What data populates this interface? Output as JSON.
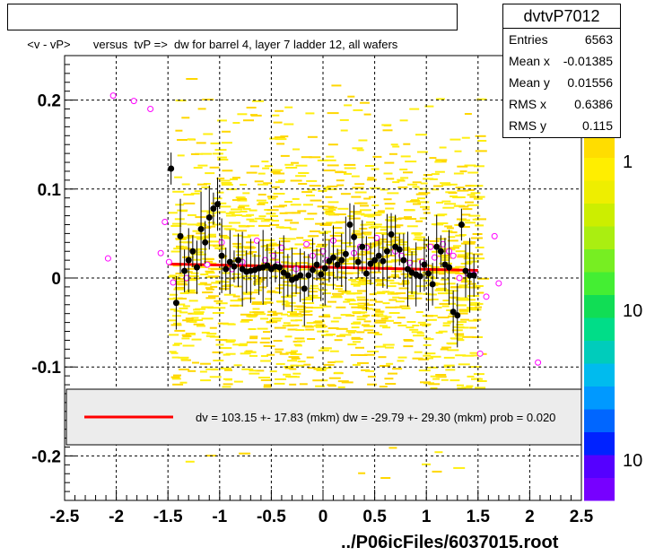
{
  "title": "<v - vP>       versus  tvP =>  dw for barrel 4, layer 7 ladder 12, all wafers",
  "stats": {
    "name": "dvtvP7012",
    "rows": [
      {
        "label": "Entries",
        "value": "6563"
      },
      {
        "label": "Mean x",
        "value": "-0.01385"
      },
      {
        "label": "Mean y",
        "value": "0.01556"
      },
      {
        "label": "RMS x",
        "value": "0.6386"
      },
      {
        "label": "RMS y",
        "value": "0.115"
      }
    ]
  },
  "footer": "../P06icFiles/6037015.root",
  "colors": {
    "fit": "#ff0000",
    "profile": "#000000",
    "open_marker": "#ff00ff"
  },
  "chart_data": {
    "type": "scatter",
    "title": "<v - vP>       versus  tvP =>  dw for barrel 4, layer 7 ladder 12, all wafers",
    "xlabel": "",
    "ylabel": "",
    "xlim": [
      -2.5,
      2.5
    ],
    "ylim": [
      -0.25,
      0.25
    ],
    "xticks": [
      "-2.5",
      "-2",
      "-1.5",
      "-1",
      "-0.5",
      "0",
      "0.5",
      "1",
      "1.5",
      "2",
      "2.5"
    ],
    "yticks": [
      "-0.2",
      "-0.1",
      "0",
      "0.1",
      "0.2"
    ],
    "grid": true,
    "colorbar_labels": [
      "1",
      "10",
      "10"
    ],
    "series": [
      {
        "marker": "filled-circle",
        "points": [
          [
            -1.47,
            0.123
          ],
          [
            -1.42,
            -0.028
          ],
          [
            -1.38,
            0.047
          ],
          [
            -1.34,
            0.008
          ],
          [
            -1.3,
            0.02
          ],
          [
            -1.26,
            0.03
          ],
          [
            -1.22,
            0.012
          ],
          [
            -1.18,
            0.055
          ],
          [
            -1.14,
            0.04
          ],
          [
            -1.1,
            0.068
          ],
          [
            -1.06,
            0.078
          ],
          [
            -1.02,
            0.083
          ],
          [
            -0.98,
            0.025
          ],
          [
            -0.94,
            0.01
          ],
          [
            -0.9,
            0.018
          ],
          [
            -0.86,
            0.013
          ],
          [
            -0.82,
            0.02
          ],
          [
            -0.78,
            0.01
          ],
          [
            -0.74,
            0.007
          ],
          [
            -0.7,
            0.008
          ],
          [
            -0.66,
            0.009
          ],
          [
            -0.62,
            0.011
          ],
          [
            -0.58,
            0.012
          ],
          [
            -0.54,
            0.014
          ],
          [
            -0.5,
            0.01
          ],
          [
            -0.46,
            0.013
          ],
          [
            -0.42,
            0.012
          ],
          [
            -0.38,
            0.006
          ],
          [
            -0.34,
            0.003
          ],
          [
            -0.3,
            -0.002
          ],
          [
            -0.26,
            0.0
          ],
          [
            -0.22,
            0.003
          ],
          [
            -0.18,
            -0.012
          ],
          [
            -0.14,
            0.003
          ],
          [
            -0.1,
            0.009
          ],
          [
            -0.06,
            0.015
          ],
          [
            -0.02,
            0.004
          ],
          [
            0.02,
            0.011
          ],
          [
            0.06,
            0.019
          ],
          [
            0.1,
            0.023
          ],
          [
            0.14,
            0.015
          ],
          [
            0.18,
            0.02
          ],
          [
            0.22,
            0.027
          ],
          [
            0.26,
            0.06
          ],
          [
            0.3,
            0.046
          ],
          [
            0.34,
            0.018
          ],
          [
            0.38,
            0.035
          ],
          [
            0.42,
            0.005
          ],
          [
            0.46,
            0.016
          ],
          [
            0.5,
            0.02
          ],
          [
            0.54,
            0.025
          ],
          [
            0.58,
            0.019
          ],
          [
            0.62,
            0.03
          ],
          [
            0.66,
            0.049
          ],
          [
            0.7,
            0.035
          ],
          [
            0.74,
            0.032
          ],
          [
            0.78,
            0.02
          ],
          [
            0.82,
            0.01
          ],
          [
            0.86,
            0.006
          ],
          [
            0.9,
            0.004
          ],
          [
            0.94,
            0.002
          ],
          [
            0.98,
            0.015
          ],
          [
            1.02,
            0.005
          ],
          [
            1.06,
            -0.007
          ],
          [
            1.1,
            0.035
          ],
          [
            1.14,
            0.03
          ],
          [
            1.18,
            0.015
          ],
          [
            1.22,
            0.012
          ],
          [
            1.26,
            -0.038
          ],
          [
            1.3,
            -0.042
          ],
          [
            1.34,
            0.06
          ],
          [
            1.38,
            0.008
          ],
          [
            1.42,
            0.003
          ],
          [
            1.46,
            0.003
          ]
        ]
      },
      {
        "marker": "open-circle",
        "points": [
          [
            -2.08,
            0.022
          ],
          [
            -2.03,
            0.205
          ],
          [
            -1.83,
            0.199
          ],
          [
            -1.67,
            0.19
          ],
          [
            -1.57,
            0.028
          ],
          [
            -1.53,
            0.063
          ],
          [
            -1.49,
            0.018
          ],
          [
            -1.45,
            -0.005
          ],
          [
            -1.32,
            0.0
          ],
          [
            -1.12,
            0.015
          ],
          [
            -0.98,
            0.04
          ],
          [
            -0.88,
            0.01
          ],
          [
            -0.78,
            0.018
          ],
          [
            -0.64,
            0.042
          ],
          [
            -0.56,
            0.02
          ],
          [
            -0.48,
            0.025
          ],
          [
            -0.44,
            0.015
          ],
          [
            -0.4,
            0.034
          ],
          [
            -0.26,
            0.01
          ],
          [
            -0.16,
            0.038
          ],
          [
            -0.1,
            0.025
          ],
          [
            0.0,
            0.03
          ],
          [
            0.04,
            0.02
          ],
          [
            0.1,
            0.042
          ],
          [
            0.3,
            0.028
          ],
          [
            0.36,
            0.035
          ],
          [
            0.42,
            0.034
          ],
          [
            0.52,
            0.045
          ],
          [
            0.7,
            0.03
          ],
          [
            0.76,
            0.025
          ],
          [
            0.84,
            0.017
          ],
          [
            0.96,
            0.018
          ],
          [
            1.04,
            0.035
          ],
          [
            1.08,
            0.023
          ],
          [
            1.16,
            0.038
          ],
          [
            1.22,
            0.03
          ],
          [
            1.26,
            0.025
          ],
          [
            1.32,
            0.0
          ],
          [
            1.4,
            0.005
          ],
          [
            1.46,
            0.004
          ],
          [
            1.52,
            -0.085
          ],
          [
            1.58,
            -0.021
          ],
          [
            1.66,
            0.047
          ],
          [
            1.7,
            -0.006
          ],
          [
            2.08,
            -0.095
          ]
        ]
      }
    ],
    "fit": {
      "x": [
        -1.5,
        1.5
      ],
      "y": [
        0.0157,
        0.0086
      ],
      "legend": "dv =  103.15 +- 17.83 (mkm) dw =  -29.79 +- 29.30 (mkm) prob = 0.020"
    }
  }
}
